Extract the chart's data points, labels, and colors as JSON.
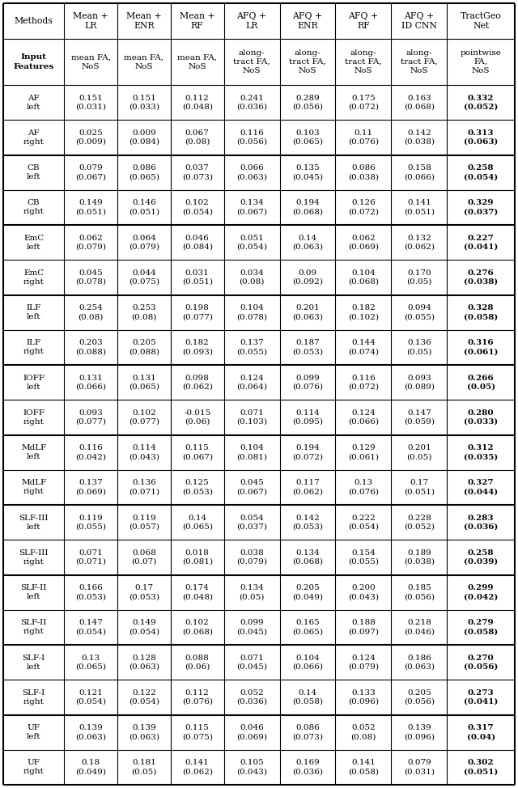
{
  "col_headers_line1": [
    "Methods",
    "Mean +\nLR",
    "Mean +\nENR",
    "Mean +\nRF",
    "AFQ +\nLR",
    "AFQ +\nENR",
    "AFQ +\nRF",
    "AFQ +\nID CNN",
    "TractGeo\nNet"
  ],
  "input_features": [
    "Input\nFeatures",
    "mean FA,\nNoS",
    "mean FA,\nNoS",
    "mean FA,\nNoS",
    "along-\ntract FA,\nNoS",
    "along-\ntract FA,\nNoS",
    "along-\ntract FA,\nNoS",
    "along-\ntract FA,\nNoS",
    "pointwise\nFA,\nNoS"
  ],
  "rows": [
    [
      "AF\nleft",
      "0.151\n(0.031)",
      "0.151\n(0.033)",
      "0.112\n(0.048)",
      "0.241\n(0.036)",
      "0.289\n(0.056)",
      "0.175\n(0.072)",
      "0.163\n(0.068)",
      "0.332\n(0.052)"
    ],
    [
      "AF\nright",
      "0.025\n(0.009)",
      "0.009\n(0.084)",
      "0.067\n(0.08)",
      "0.116\n(0.056)",
      "0.103\n(0.065)",
      "0.11\n(0.076)",
      "0.142\n(0.038)",
      "0.313\n(0.063)"
    ],
    [
      "CB\nleft",
      "0.079\n(0.067)",
      "0.086\n(0.065)",
      "0.037\n(0.073)",
      "0.066\n(0.063)",
      "0.135\n(0.045)",
      "0.086\n(0.038)",
      "0.158\n(0.066)",
      "0.258\n(0.054)"
    ],
    [
      "CB\nright",
      "0.149\n(0.051)",
      "0.146\n(0.051)",
      "0.102\n(0.054)",
      "0.134\n(0.067)",
      "0.194\n(0.068)",
      "0.126\n(0.072)",
      "0.141\n(0.051)",
      "0.329\n(0.037)"
    ],
    [
      "EmC\nleft",
      "0.062\n(0.079)",
      "0.064\n(0.079)",
      "0.046\n(0.084)",
      "0.051\n(0.054)",
      "0.14\n(0.063)",
      "0.062\n(0.069)",
      "0.132\n(0.062)",
      "0.227\n(0.041)"
    ],
    [
      "EmC\nright",
      "0.045\n(0.078)",
      "0.044\n(0.075)",
      "0.031\n(0.051)",
      "0.034\n(0.08)",
      "0.09\n(0.092)",
      "0.104\n(0.068)",
      "0.170\n(0.05)",
      "0.276\n(0.038)"
    ],
    [
      "ILF\nleft",
      "0.254\n(0.08)",
      "0.253\n(0.08)",
      "0.198\n(0.077)",
      "0.104\n(0.078)",
      "0.201\n(0.063)",
      "0.182\n(0.102)",
      "0.094\n(0.055)",
      "0.328\n(0.058)"
    ],
    [
      "ILF\nright",
      "0.203\n(0.088)",
      "0.205\n(0.088)",
      "0.182\n(0.093)",
      "0.137\n(0.055)",
      "0.187\n(0.053)",
      "0.144\n(0.074)",
      "0.136\n(0.05)",
      "0.316\n(0.061)"
    ],
    [
      "IOFF\nleft",
      "0.131\n(0.066)",
      "0.131\n(0.065)",
      "0.098\n(0.062)",
      "0.124\n(0.064)",
      "0.099\n(0.076)",
      "0.116\n(0.072)",
      "0.093\n(0.089)",
      "0.266\n(0.05)"
    ],
    [
      "IOFF\nright",
      "0.093\n(0.077)",
      "0.102\n(0.077)",
      "-0.015\n(0.06)",
      "0.071\n(0.103)",
      "0.114\n(0.095)",
      "0.124\n(0.066)",
      "0.147\n(0.059)",
      "0.280\n(0.033)"
    ],
    [
      "MdLF\nleft",
      "0.116\n(0.042)",
      "0.114\n(0.043)",
      "0.115\n(0.067)",
      "0.104\n(0.081)",
      "0.194\n(0.072)",
      "0.129\n(0.061)",
      "0.201\n(0.05)",
      "0.312\n(0.035)"
    ],
    [
      "MdLF\nright",
      "0.137\n(0.069)",
      "0.136\n(0.071)",
      "0.125\n(0.053)",
      "0.045\n(0.067)",
      "0.117\n(0.062)",
      "0.13\n(0.076)",
      "0.17\n(0.051)",
      "0.327\n(0.044)"
    ],
    [
      "SLF-III\nleft",
      "0.119\n(0.055)",
      "0.119\n(0.057)",
      "0.14\n(0.065)",
      "0.054\n(0.037)",
      "0.142\n(0.053)",
      "0.222\n(0.054)",
      "0.228\n(0.052)",
      "0.283\n(0.036)"
    ],
    [
      "SLF-III\nright",
      "0.071\n(0.071)",
      "0.068\n(0.07)",
      "0.018\n(0.081)",
      "0.038\n(0.079)",
      "0.134\n(0.068)",
      "0.154\n(0.055)",
      "0.189\n(0.038)",
      "0.258\n(0.039)"
    ],
    [
      "SLF-II\nleft",
      "0.166\n(0.053)",
      "0.17\n(0.053)",
      "0.174\n(0.048)",
      "0.134\n(0.05)",
      "0.205\n(0.049)",
      "0.200\n(0.043)",
      "0.185\n(0.056)",
      "0.299\n(0.042)"
    ],
    [
      "SLF-II\nright",
      "0.147\n(0.054)",
      "0.149\n(0.054)",
      "0.102\n(0.068)",
      "0.099\n(0.045)",
      "0.165\n(0.065)",
      "0.188\n(0.097)",
      "0.218\n(0.046)",
      "0.279\n(0.058)"
    ],
    [
      "SLF-I\nleft",
      "0.13\n(0.065)",
      "0.128\n(0.063)",
      "0.088\n(0.06)",
      "0.071\n(0.045)",
      "0.104\n(0.066)",
      "0.124\n(0.079)",
      "0.186\n(0.063)",
      "0.270\n(0.056)"
    ],
    [
      "SLF-I\nright",
      "0.121\n(0.054)",
      "0.122\n(0.054)",
      "0.112\n(0.076)",
      "0.052\n(0.036)",
      "0.14\n(0.058)",
      "0.133\n(0.096)",
      "0.205\n(0.056)",
      "0.273\n(0.041)"
    ],
    [
      "UF\nleft",
      "0.139\n(0.063)",
      "0.139\n(0.063)",
      "0.115\n(0.075)",
      "0.046\n(0.069)",
      "0.086\n(0.073)",
      "0.052\n(0.08)",
      "0.139\n(0.096)",
      "0.317\n(0.04)"
    ],
    [
      "UF\nright",
      "0.18\n(0.049)",
      "0.181\n(0.05)",
      "0.141\n(0.062)",
      "0.105\n(0.043)",
      "0.169\n(0.036)",
      "0.141\n(0.058)",
      "0.079\n(0.031)",
      "0.302\n(0.051)"
    ]
  ],
  "background_color": "#ffffff",
  "figwidth": 6.4,
  "figheight": 9.74,
  "dpi": 100
}
